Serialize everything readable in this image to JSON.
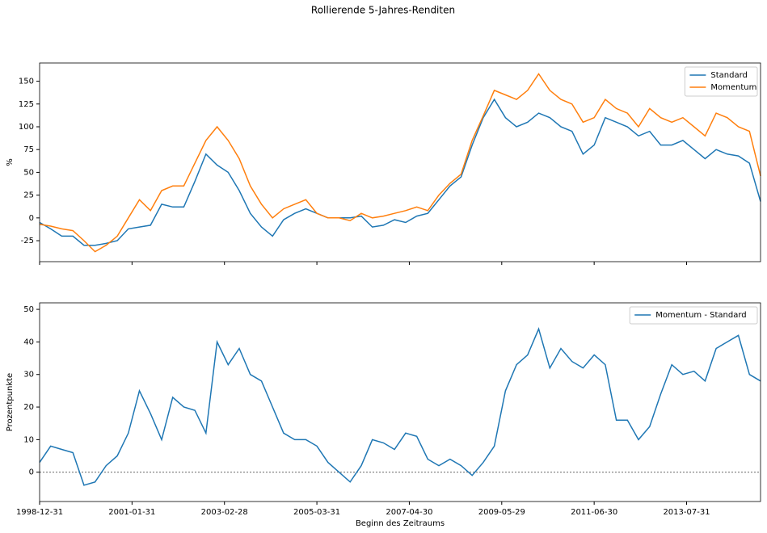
{
  "title": "Rollierende 5-Jahres-Renditen",
  "xlabel": "Beginn des Zeitraums",
  "chart_data": [
    {
      "type": "line",
      "ylabel": "%",
      "legend": "upper right",
      "grid": false,
      "x": [
        "1998-12",
        "1999-03",
        "1999-06",
        "1999-09",
        "1999-12",
        "2000-03",
        "2000-06",
        "2000-09",
        "2000-12",
        "2001-03",
        "2001-06",
        "2001-09",
        "2001-12",
        "2002-03",
        "2002-06",
        "2002-09",
        "2002-12",
        "2003-03",
        "2003-06",
        "2003-09",
        "2003-12",
        "2004-03",
        "2004-06",
        "2004-09",
        "2004-12",
        "2005-03",
        "2005-06",
        "2005-09",
        "2005-12",
        "2006-03",
        "2006-06",
        "2006-09",
        "2006-12",
        "2007-03",
        "2007-06",
        "2007-09",
        "2007-12",
        "2008-03",
        "2008-06",
        "2008-09",
        "2008-12",
        "2009-03",
        "2009-06",
        "2009-09",
        "2009-12",
        "2010-03",
        "2010-06",
        "2010-09",
        "2010-12",
        "2011-03",
        "2011-06",
        "2011-09",
        "2011-12",
        "2012-03",
        "2012-06",
        "2012-09",
        "2012-12",
        "2013-03",
        "2013-06",
        "2013-09",
        "2013-12",
        "2014-03",
        "2014-06",
        "2014-09",
        "2014-12",
        "2015-03"
      ],
      "series": [
        {
          "name": "Standard",
          "color": "#1f77b4",
          "values": [
            -5,
            -12,
            -20,
            -20,
            -30,
            -30,
            -28,
            -25,
            -12,
            -10,
            -8,
            15,
            12,
            12,
            40,
            70,
            58,
            50,
            30,
            5,
            -10,
            -20,
            -2,
            5,
            10,
            5,
            0,
            0,
            0,
            2,
            -10,
            -8,
            -2,
            -5,
            2,
            5,
            20,
            35,
            45,
            80,
            110,
            130,
            110,
            100,
            105,
            115,
            110,
            100,
            95,
            70,
            80,
            110,
            105,
            100,
            90,
            95,
            80,
            80,
            85,
            75,
            65,
            75,
            70,
            68,
            60,
            18
          ]
        },
        {
          "name": "Momentum",
          "color": "#ff7f0e",
          "values": [
            -7,
            -9,
            -12,
            -14,
            -25,
            -37,
            -30,
            -20,
            0,
            20,
            8,
            30,
            35,
            35,
            60,
            85,
            100,
            85,
            65,
            35,
            15,
            0,
            10,
            15,
            20,
            5,
            0,
            0,
            -3,
            5,
            0,
            2,
            5,
            8,
            12,
            8,
            25,
            38,
            48,
            85,
            112,
            140,
            135,
            130,
            140,
            158,
            140,
            130,
            125,
            105,
            110,
            130,
            120,
            115,
            100,
            120,
            110,
            105,
            110,
            100,
            90,
            115,
            110,
            100,
            95,
            46
          ]
        }
      ],
      "xlim": [
        "1998-12",
        "2015-03"
      ],
      "xticks": [
        "1998-12-31",
        "2001-01-31",
        "2003-02-28",
        "2005-03-31",
        "2007-04-30",
        "2009-05-29",
        "2011-06-30",
        "2013-07-31"
      ],
      "ylim": [
        -48,
        170
      ],
      "yticks": [
        -25,
        0,
        25,
        50,
        75,
        100,
        125,
        150
      ]
    },
    {
      "type": "line",
      "ylabel": "Prozentpunkte",
      "legend": "upper right",
      "grid": false,
      "hline": 0,
      "x": [
        "1998-12",
        "1999-03",
        "1999-06",
        "1999-09",
        "1999-12",
        "2000-03",
        "2000-06",
        "2000-09",
        "2000-12",
        "2001-03",
        "2001-06",
        "2001-09",
        "2001-12",
        "2002-03",
        "2002-06",
        "2002-09",
        "2002-12",
        "2003-03",
        "2003-06",
        "2003-09",
        "2003-12",
        "2004-03",
        "2004-06",
        "2004-09",
        "2004-12",
        "2005-03",
        "2005-06",
        "2005-09",
        "2005-12",
        "2006-03",
        "2006-06",
        "2006-09",
        "2006-12",
        "2007-03",
        "2007-06",
        "2007-09",
        "2007-12",
        "2008-03",
        "2008-06",
        "2008-09",
        "2008-12",
        "2009-03",
        "2009-06",
        "2009-09",
        "2009-12",
        "2010-03",
        "2010-06",
        "2010-09",
        "2010-12",
        "2011-03",
        "2011-06",
        "2011-09",
        "2011-12",
        "2012-03",
        "2012-06",
        "2012-09",
        "2012-12",
        "2013-03",
        "2013-06",
        "2013-09",
        "2013-12",
        "2014-03",
        "2014-06",
        "2014-09",
        "2014-12",
        "2015-03"
      ],
      "series": [
        {
          "name": "Momentum - Standard",
          "color": "#1f77b4",
          "values": [
            3,
            8,
            7,
            6,
            -4,
            -3,
            2,
            5,
            12,
            25,
            18,
            10,
            23,
            20,
            19,
            12,
            40,
            33,
            38,
            30,
            28,
            20,
            12,
            10,
            10,
            8,
            3,
            0,
            -3,
            2,
            10,
            9,
            7,
            12,
            11,
            4,
            2,
            4,
            2,
            -1,
            3,
            8,
            25,
            33,
            36,
            44,
            32,
            38,
            34,
            32,
            36,
            33,
            16,
            16,
            10,
            14,
            24,
            33,
            30,
            31,
            28,
            38,
            40,
            42,
            30,
            28
          ]
        }
      ],
      "xlim": [
        "1998-12",
        "2015-03"
      ],
      "xticks": [
        "1998-12-31",
        "2001-01-31",
        "2003-02-28",
        "2005-03-31",
        "2007-04-30",
        "2009-05-29",
        "2011-06-30",
        "2013-07-31"
      ],
      "ylim": [
        -9,
        52
      ],
      "yticks": [
        0,
        10,
        20,
        30,
        40,
        50
      ]
    }
  ]
}
